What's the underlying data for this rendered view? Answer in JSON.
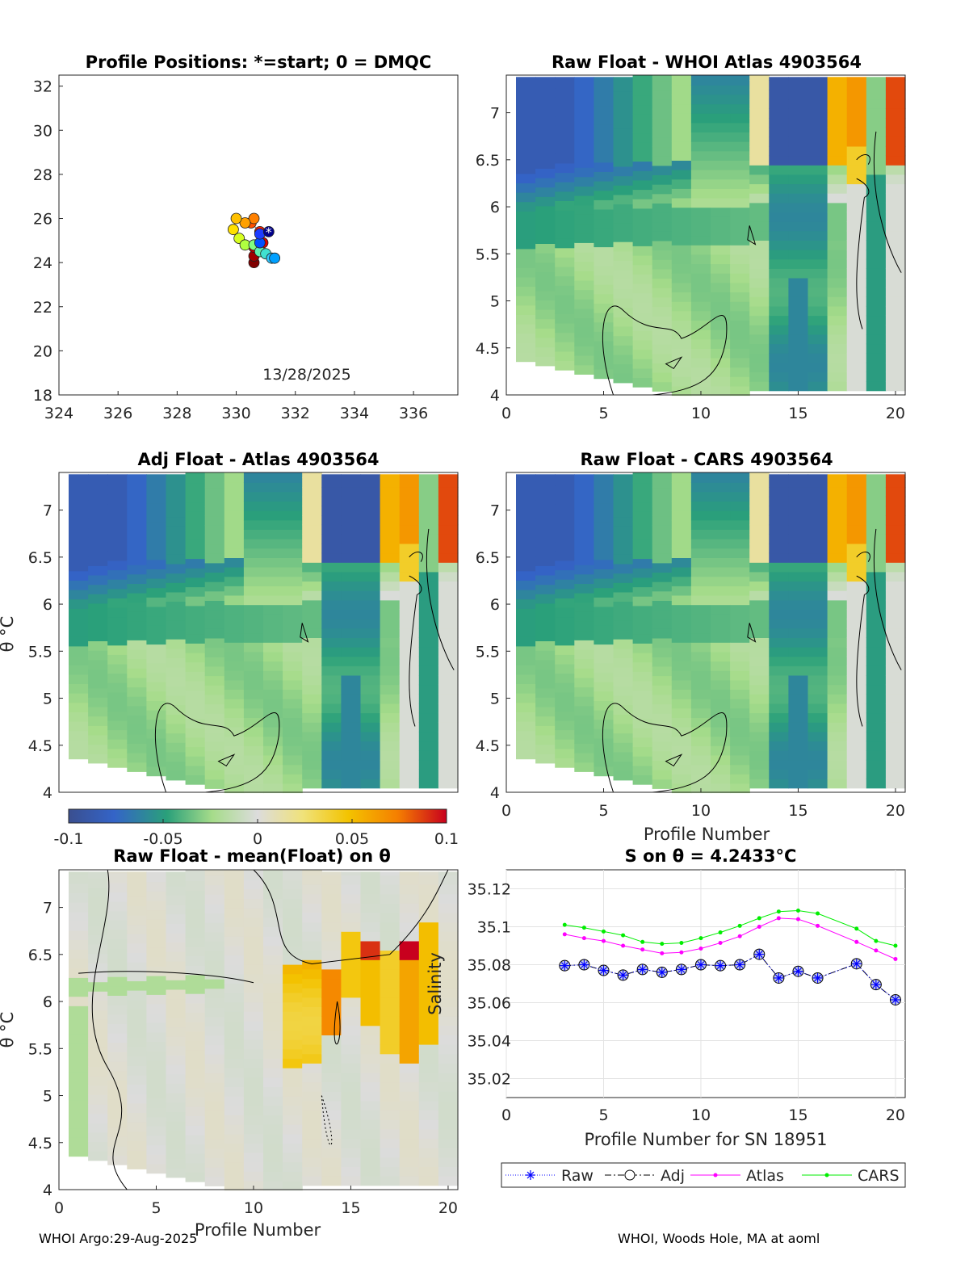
{
  "footer": {
    "left": "WHOI Argo:29-Aug-2025",
    "right": "WHOI, Woods Hole, MA at aoml"
  },
  "chart_data": [
    {
      "id": "positions",
      "type": "scatter",
      "title": "Profile Positions: *=start; 0 = DMQC",
      "xlim": [
        324,
        337.5
      ],
      "ylim": [
        18,
        32.5
      ],
      "xticks": [
        324,
        326,
        328,
        330,
        332,
        334,
        336
      ],
      "yticks": [
        18,
        20,
        22,
        24,
        26,
        28,
        30,
        32
      ],
      "annotation": "13/28/2025",
      "points": [
        {
          "lon": 331.1,
          "lat": 25.4,
          "color": "#00008b"
        },
        {
          "lon": 330.8,
          "lat": 25.3,
          "color": "#1e3cff"
        },
        {
          "lon": 330.8,
          "lat": 24.9,
          "color": "#0050ff"
        },
        {
          "lon": 331.3,
          "lat": 24.2,
          "color": "#00a0ff"
        },
        {
          "lon": 331.2,
          "lat": 24.2,
          "color": "#30c8ff"
        },
        {
          "lon": 331.0,
          "lat": 24.4,
          "color": "#40e0d0"
        },
        {
          "lon": 330.8,
          "lat": 24.5,
          "color": "#60f0b0"
        },
        {
          "lon": 330.6,
          "lat": 24.8,
          "color": "#80ff80"
        },
        {
          "lon": 330.3,
          "lat": 24.8,
          "color": "#b0ff40"
        },
        {
          "lon": 330.1,
          "lat": 25.1,
          "color": "#d8ff20"
        },
        {
          "lon": 329.9,
          "lat": 25.5,
          "color": "#ffe000"
        },
        {
          "lon": 330.0,
          "lat": 26.0,
          "color": "#ffc000"
        },
        {
          "lon": 330.3,
          "lat": 25.8,
          "color": "#ffa000"
        },
        {
          "lon": 330.6,
          "lat": 26.0,
          "color": "#ff8000"
        },
        {
          "lon": 330.5,
          "lat": 25.8,
          "color": "#ff5000"
        },
        {
          "lon": 330.8,
          "lat": 25.4,
          "color": "#ff2000"
        },
        {
          "lon": 330.9,
          "lat": 24.9,
          "color": "#e00000"
        },
        {
          "lon": 330.6,
          "lat": 24.7,
          "color": "#c00000"
        },
        {
          "lon": 330.6,
          "lat": 24.3,
          "color": "#a00000"
        },
        {
          "lon": 330.6,
          "lat": 24.0,
          "color": "#800000"
        }
      ]
    },
    {
      "id": "raw_whoi",
      "type": "heatmap",
      "title": "Raw Float - WHOI Atlas  4903564",
      "xlim": [
        0,
        20.5
      ],
      "ylim": [
        4,
        7.4
      ],
      "xticks": [
        0,
        5,
        10,
        15,
        20
      ],
      "yticks": [
        4,
        4.5,
        5,
        5.5,
        6,
        6.5,
        7
      ],
      "xlabel": "",
      "ylabel": ""
    },
    {
      "id": "adj_atlas",
      "type": "heatmap",
      "title": "Adj Float - Atlas  4903564",
      "xlim": [
        0,
        20.5
      ],
      "ylim": [
        4,
        7.4
      ],
      "xticks": [],
      "yticks": [
        4,
        4.5,
        5,
        5.5,
        6,
        6.5,
        7
      ],
      "xlabel": "",
      "ylabel": "θ °C"
    },
    {
      "id": "raw_cars",
      "type": "heatmap",
      "title": "Raw Float - CARS  4903564",
      "xlim": [
        0,
        20.5
      ],
      "ylim": [
        4,
        7.4
      ],
      "xticks": [
        0,
        5,
        10,
        15,
        20
      ],
      "yticks": [
        4,
        4.5,
        5,
        5.5,
        6,
        6.5,
        7
      ],
      "xlabel": "Profile Number",
      "ylabel": ""
    },
    {
      "id": "colorbar",
      "type": "colorbar",
      "range": [
        -0.1,
        0.1
      ],
      "tick_labels": [
        "-0.1",
        "-0.05",
        "0",
        "0.05",
        "0.1"
      ]
    },
    {
      "id": "raw_mean",
      "type": "heatmap",
      "title": "Raw Float - mean(Float) on θ",
      "xlim": [
        0,
        20.5
      ],
      "ylim": [
        4,
        7.4
      ],
      "xticks": [
        0,
        5,
        10,
        15,
        20
      ],
      "yticks": [
        4,
        4.5,
        5,
        5.5,
        6,
        6.5,
        7
      ],
      "xlabel": "Profile Number",
      "ylabel": "θ °C"
    },
    {
      "id": "salinity",
      "type": "line",
      "title": "S on θ = 4.2433°C",
      "xlabel": "Profile Number for SN 18951",
      "ylabel": "Salinity",
      "xlim": [
        0,
        20.5
      ],
      "ylim": [
        35.01,
        35.13
      ],
      "xticks": [
        0,
        5,
        10,
        15,
        20
      ],
      "yticks": [
        35.02,
        35.04,
        35.06,
        35.08,
        35.1,
        35.12
      ],
      "x": [
        3,
        4,
        5,
        6,
        7,
        8,
        9,
        10,
        11,
        12,
        13,
        14,
        15,
        16,
        18,
        19,
        20
      ],
      "series": [
        {
          "name": "Raw",
          "color": "#0000ff",
          "values": [
            35.0795,
            35.08,
            35.077,
            35.0745,
            35.0775,
            35.076,
            35.0775,
            35.08,
            35.0795,
            35.08,
            35.0855,
            35.073,
            35.0765,
            35.073,
            35.0805,
            35.0695,
            35.0615
          ]
        },
        {
          "name": "Adj",
          "color": "#000000",
          "values": [
            35.0795,
            35.08,
            35.077,
            35.0745,
            35.0775,
            35.076,
            35.0775,
            35.08,
            35.0795,
            35.08,
            35.0855,
            35.073,
            35.0765,
            35.073,
            35.0805,
            35.0695,
            35.0615
          ]
        },
        {
          "name": "Atlas",
          "color": "#ff00ff",
          "values": [
            35.096,
            35.094,
            35.0925,
            35.09,
            35.088,
            35.086,
            35.0865,
            35.0885,
            35.0915,
            35.095,
            35.1,
            35.1045,
            35.104,
            35.1005,
            35.092,
            35.0875,
            35.083
          ]
        },
        {
          "name": "CARS",
          "color": "#00ee00",
          "values": [
            35.101,
            35.0995,
            35.0975,
            35.0955,
            35.092,
            35.091,
            35.0915,
            35.094,
            35.097,
            35.1005,
            35.1045,
            35.108,
            35.1085,
            35.107,
            35.099,
            35.0925,
            35.09
          ]
        }
      ]
    }
  ]
}
